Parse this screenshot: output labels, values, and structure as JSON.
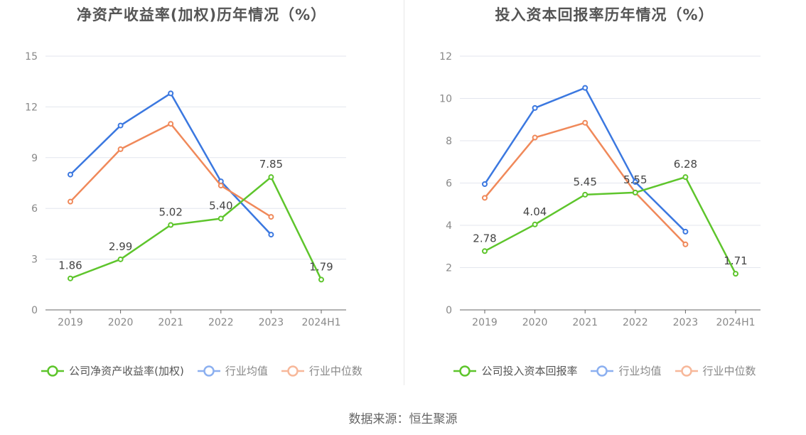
{
  "footer": {
    "source": "数据来源：恒生聚源"
  },
  "colors": {
    "company": "#5ec52c",
    "avg": "#3b78e0",
    "median": "#f0895a"
  },
  "chart_data": [
    {
      "type": "line",
      "title": "净资产收益率(加权)历年情况（%）",
      "categories": [
        "2019",
        "2020",
        "2021",
        "2022",
        "2023",
        "2024H1"
      ],
      "ylim": [
        0,
        15
      ],
      "yticks": [
        0,
        3,
        6,
        9,
        12,
        15
      ],
      "legend_position": "bottom",
      "series": [
        {
          "name": "公司净资产收益率(加权)",
          "color": "#5ec52c",
          "labels": true,
          "values": [
            1.86,
            2.99,
            5.02,
            5.4,
            7.85,
            1.79
          ],
          "value_labels": [
            "1.86",
            "2.99",
            "5.02",
            "5.40",
            "7.85",
            "1.79"
          ]
        },
        {
          "name": "行业均值",
          "color": "#3b78e0",
          "labels": false,
          "values": [
            8.0,
            10.9,
            12.8,
            7.6,
            4.45,
            null
          ]
        },
        {
          "name": "行业中位数",
          "color": "#f0895a",
          "labels": false,
          "values": [
            6.4,
            9.5,
            11.0,
            7.35,
            5.5,
            null
          ]
        }
      ]
    },
    {
      "type": "line",
      "title": "投入资本回报率历年情况（%）",
      "categories": [
        "2019",
        "2020",
        "2021",
        "2022",
        "2023",
        "2024H1"
      ],
      "ylim": [
        0,
        12
      ],
      "yticks": [
        0,
        2,
        4,
        6,
        8,
        10,
        12
      ],
      "legend_position": "bottom",
      "series": [
        {
          "name": "公司投入资本回报率",
          "color": "#5ec52c",
          "labels": true,
          "values": [
            2.78,
            4.04,
            5.45,
            5.55,
            6.28,
            1.71
          ],
          "value_labels": [
            "2.78",
            "4.04",
            "5.45",
            "5.55",
            "6.28",
            "1.71"
          ]
        },
        {
          "name": "行业均值",
          "color": "#3b78e0",
          "labels": false,
          "values": [
            5.95,
            9.55,
            10.5,
            6.05,
            3.7,
            null
          ]
        },
        {
          "name": "行业中位数",
          "color": "#f0895a",
          "labels": false,
          "values": [
            5.3,
            8.15,
            8.85,
            5.55,
            3.1,
            null
          ]
        }
      ]
    }
  ]
}
